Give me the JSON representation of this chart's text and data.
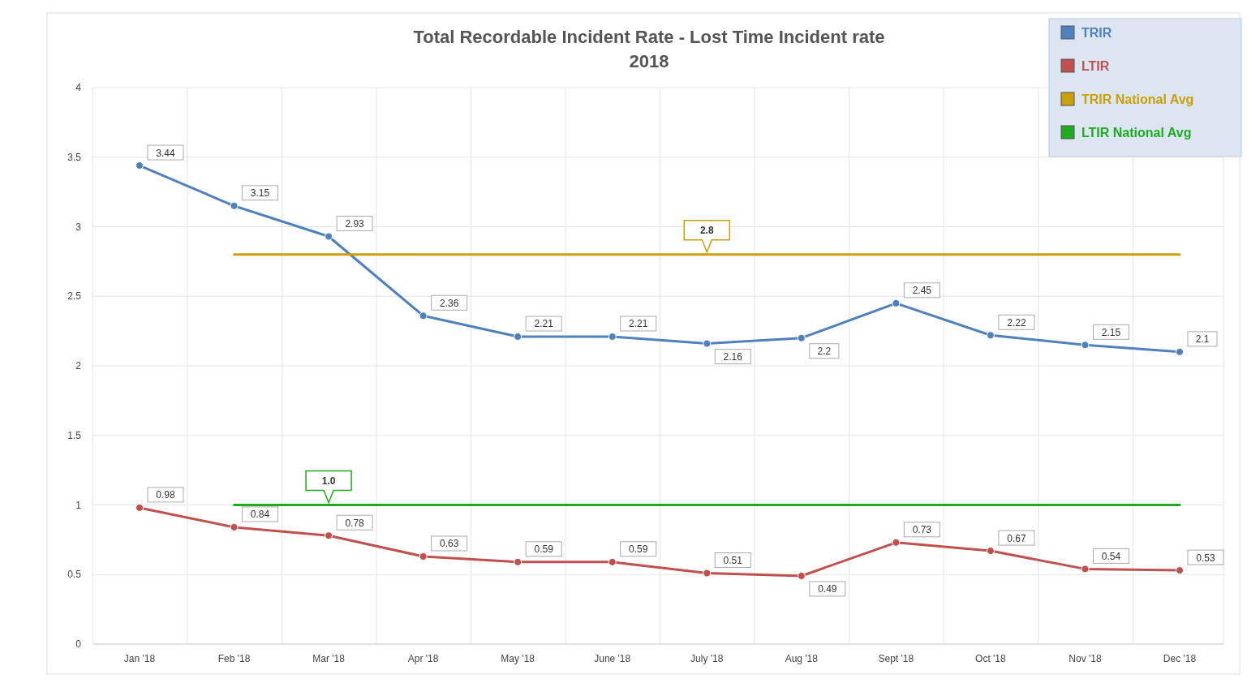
{
  "chart_data": {
    "type": "line",
    "title": "Total Recordable Incident Rate - Lost Time Incident rate",
    "subtitle": "2018",
    "categories": [
      "Jan '18",
      "Feb '18",
      "Mar '18",
      "Apr '18",
      "May '18",
      "June '18",
      "July '18",
      "Aug '18",
      "Sept '18",
      "Oct '18",
      "Nov '18",
      "Dec '18"
    ],
    "series": [
      {
        "name": "TRIR",
        "color": "#4f81bd",
        "values": [
          3.44,
          3.15,
          2.93,
          2.36,
          2.21,
          2.21,
          2.16,
          2.2,
          2.45,
          2.22,
          2.15,
          2.1
        ],
        "value_labels": [
          "3.44",
          "3.15",
          "2.93",
          "2.36",
          "2.21",
          "2.21",
          "2.16",
          "2.2",
          "2.45",
          "2.22",
          "2.15",
          "2.1"
        ]
      },
      {
        "name": "LTIR",
        "color": "#c0504d",
        "values": [
          0.98,
          0.84,
          0.78,
          0.63,
          0.59,
          0.59,
          0.51,
          0.49,
          0.73,
          0.67,
          0.54,
          0.53
        ],
        "value_labels": [
          "0.98",
          "0.84",
          "0.78",
          "0.63",
          "0.59",
          "0.59",
          "0.51",
          "0.49",
          "0.73",
          "0.67",
          "0.54",
          "0.53"
        ]
      },
      {
        "name": "TRIR National Avg",
        "color": "#c9a00a",
        "marker": "none",
        "values": [
          null,
          2.8,
          2.8,
          2.8,
          2.8,
          2.8,
          2.8,
          2.8,
          2.8,
          2.8,
          2.8,
          2.8
        ],
        "value_labels": [
          null,
          null,
          null,
          null,
          null,
          null,
          "2.8",
          null,
          null,
          null,
          null,
          null
        ]
      },
      {
        "name": "LTIR National Avg",
        "color": "#1faa1f",
        "marker": "none",
        "values": [
          null,
          1.0,
          1.0,
          1.0,
          1.0,
          1.0,
          1.0,
          1.0,
          1.0,
          1.0,
          1.0,
          1.0
        ],
        "value_labels": [
          null,
          null,
          "1.0",
          null,
          null,
          null,
          null,
          null,
          null,
          null,
          null,
          null
        ]
      }
    ],
    "ylim": [
      0,
      4
    ],
    "yticks": [
      0,
      0.5,
      1,
      1.5,
      2,
      2.5,
      3,
      3.5,
      4
    ],
    "grid": true,
    "legend": "top right",
    "marker": "circle",
    "line_style": "solid"
  }
}
